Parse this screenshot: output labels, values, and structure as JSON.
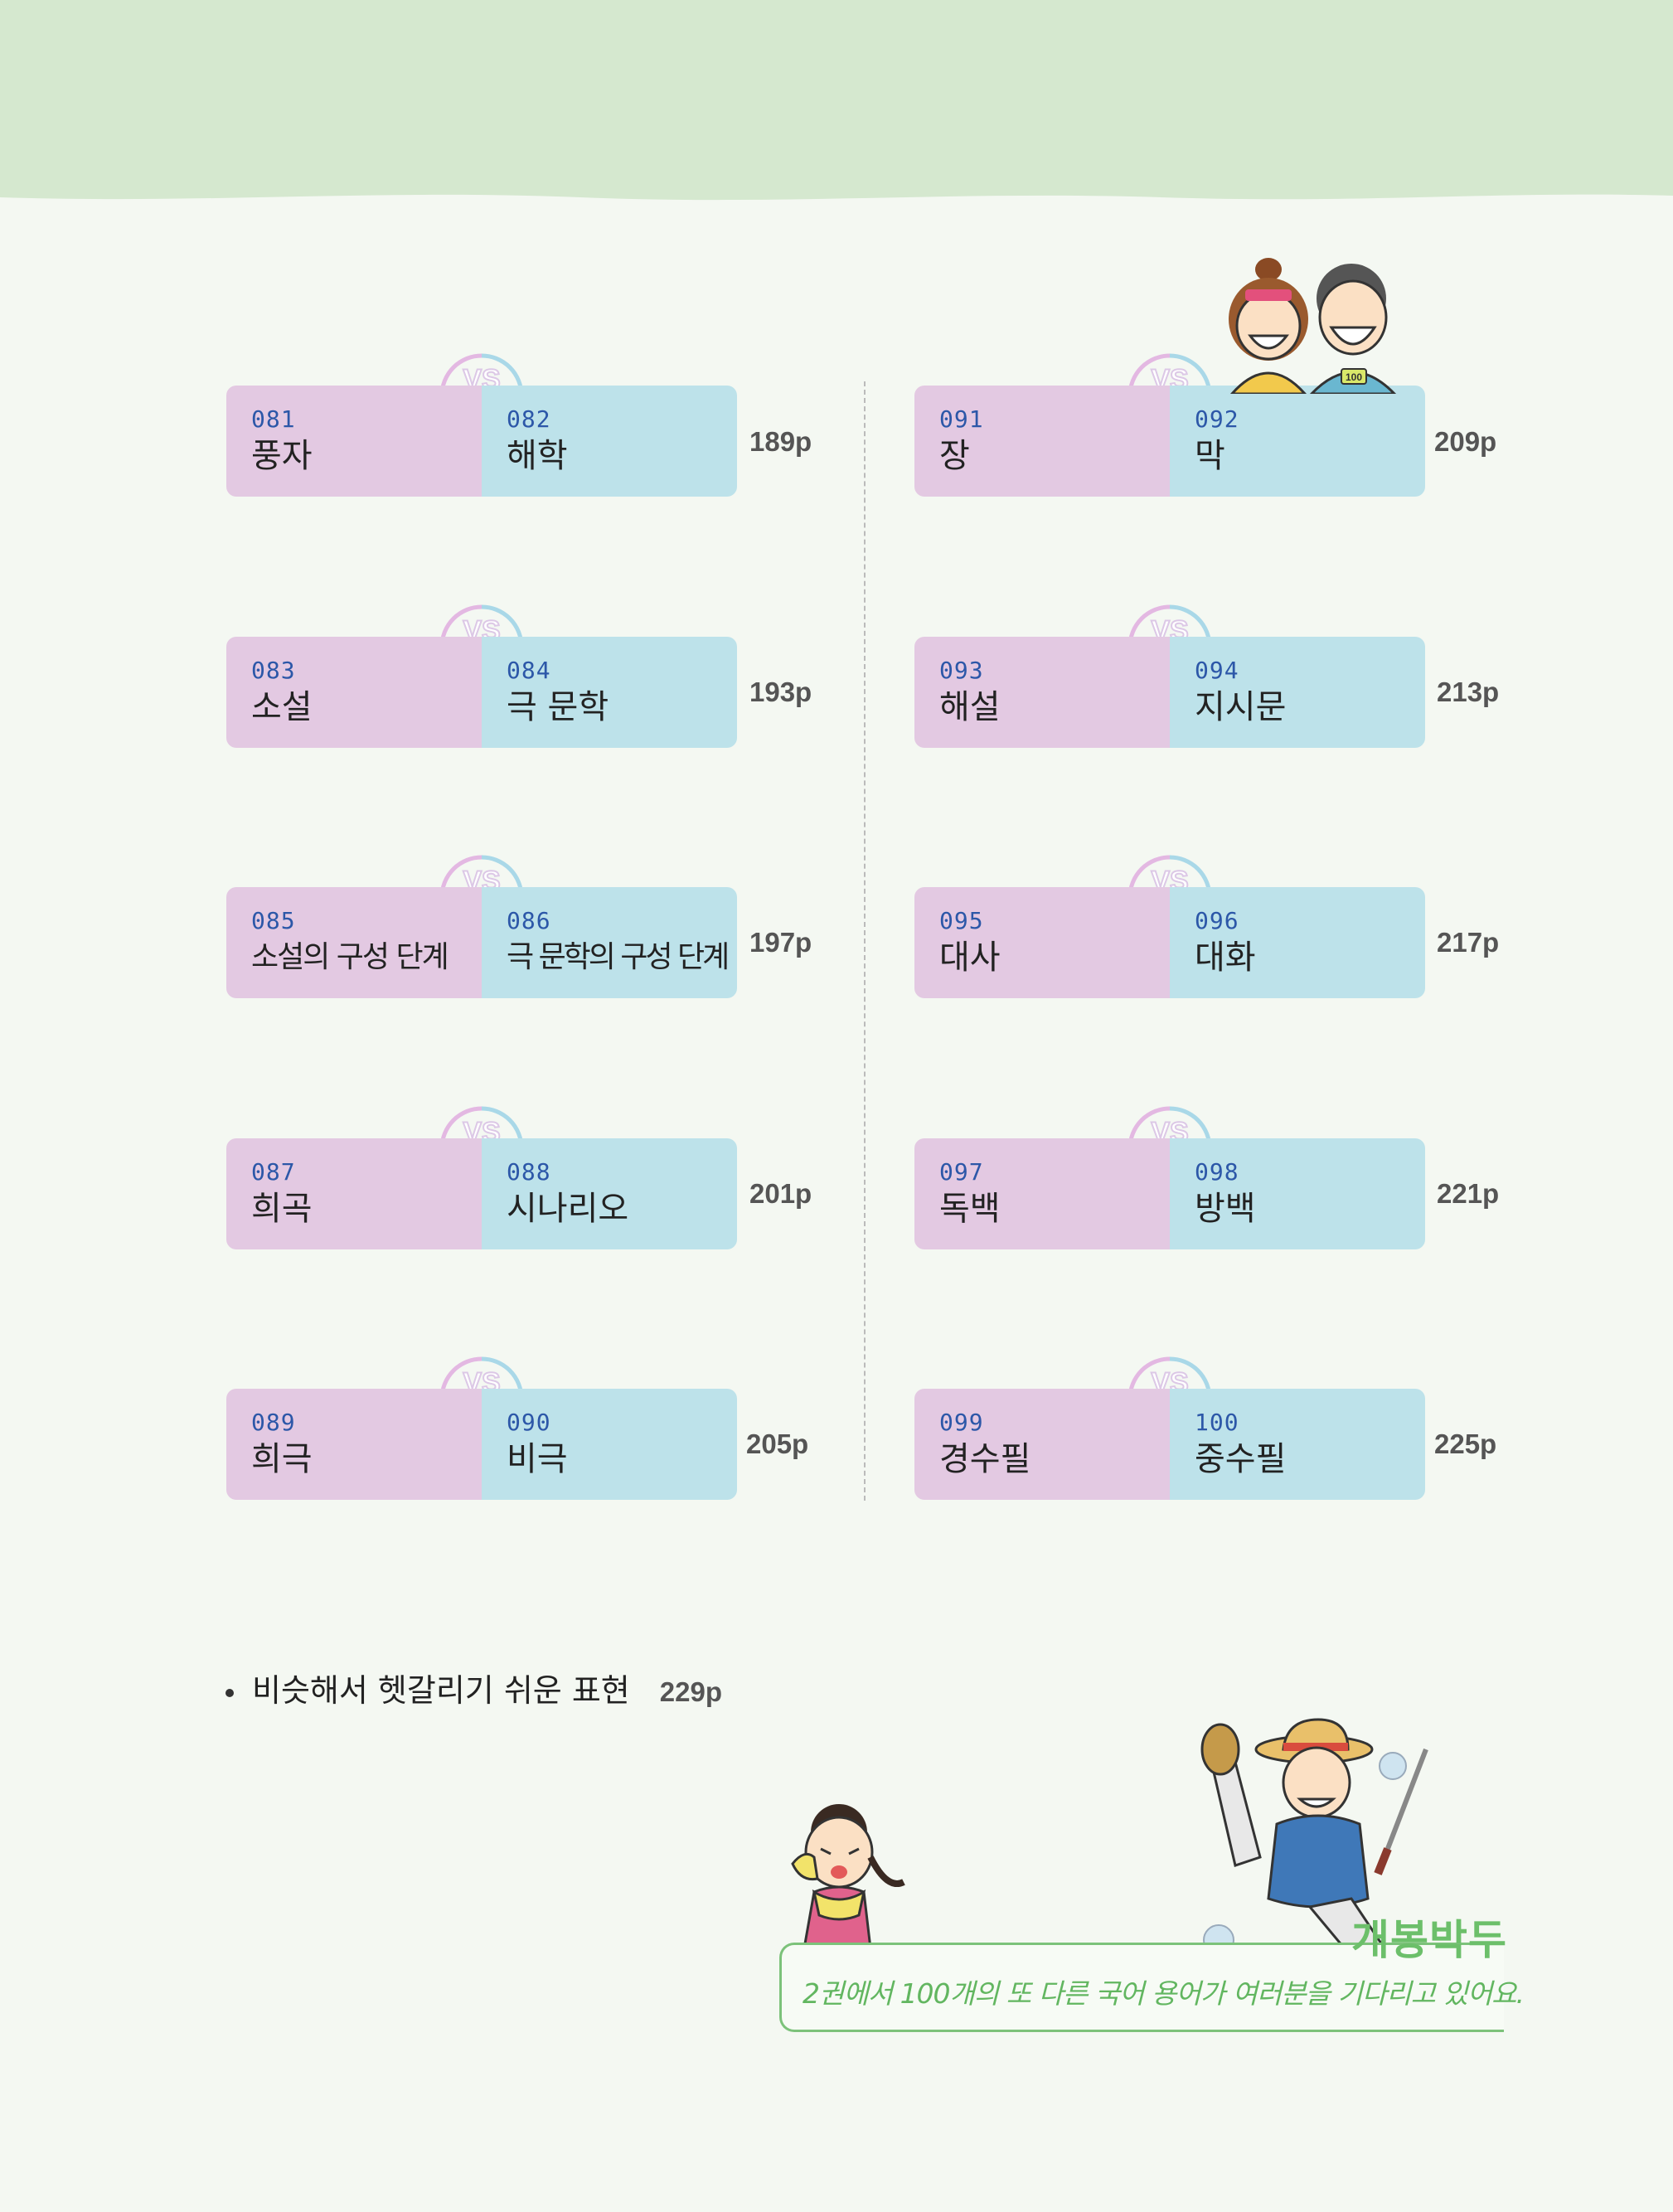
{
  "pairs": [
    {
      "left": {
        "num": "081",
        "term": "풍자"
      },
      "right": {
        "num": "082",
        "term": "해학"
      },
      "page": "189p"
    },
    {
      "left": {
        "num": "083",
        "term": "소설"
      },
      "right": {
        "num": "084",
        "term": "극 문학"
      },
      "page": "193p"
    },
    {
      "left": {
        "num": "085",
        "term": "소설의 구성 단계"
      },
      "right": {
        "num": "086",
        "term": "극 문학의 구성 단계"
      },
      "page": "197p"
    },
    {
      "left": {
        "num": "087",
        "term": "희곡"
      },
      "right": {
        "num": "088",
        "term": "시나리오"
      },
      "page": "201p"
    },
    {
      "left": {
        "num": "089",
        "term": "희극"
      },
      "right": {
        "num": "090",
        "term": "비극"
      },
      "page": "205p"
    },
    {
      "left": {
        "num": "091",
        "term": "장"
      },
      "right": {
        "num": "092",
        "term": "막"
      },
      "page": "209p"
    },
    {
      "left": {
        "num": "093",
        "term": "해설"
      },
      "right": {
        "num": "094",
        "term": "지시문"
      },
      "page": "213p"
    },
    {
      "left": {
        "num": "095",
        "term": "대사"
      },
      "right": {
        "num": "096",
        "term": "대화"
      },
      "page": "217p"
    },
    {
      "left": {
        "num": "097",
        "term": "독백"
      },
      "right": {
        "num": "098",
        "term": "방백"
      },
      "page": "221p"
    },
    {
      "left": {
        "num": "099",
        "term": "경수필"
      },
      "right": {
        "num": "100",
        "term": "중수필"
      },
      "page": "225p"
    }
  ],
  "vs_label": "VS",
  "extra": {
    "text": "비슷해서 헷갈리기 쉬운 표현",
    "page": "229p"
  },
  "banner": {
    "title": "개봉박두",
    "text": "2권에서 100개의 또 다른 국어 용어가 여러분을 기다리고 있어요."
  },
  "colors": {
    "left_box": "#e3c9e2",
    "right_box": "#bde2ea",
    "number": "#2c57a8",
    "banner": "#6cbf6a",
    "top_band": "#d5e8cf"
  },
  "badge_100": "100"
}
